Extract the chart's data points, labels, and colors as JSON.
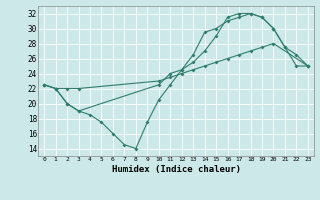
{
  "xlabel": "Humidex (Indice chaleur)",
  "background_color": "#cce8e8",
  "line_color": "#2e7d6e",
  "ylim": [
    13,
    33
  ],
  "xlim": [
    -0.5,
    23.5
  ],
  "yticks": [
    14,
    16,
    18,
    20,
    22,
    24,
    26,
    28,
    30,
    32
  ],
  "xticks": [
    0,
    1,
    2,
    3,
    4,
    5,
    6,
    7,
    8,
    9,
    10,
    11,
    12,
    13,
    14,
    15,
    16,
    17,
    18,
    19,
    20,
    21,
    22,
    23
  ],
  "line1_x": [
    0,
    1,
    2,
    3,
    4,
    5,
    6,
    7,
    8,
    9,
    10,
    11,
    12,
    13,
    14,
    15,
    16,
    17,
    18,
    19,
    20,
    21,
    22,
    23
  ],
  "line1_y": [
    22.5,
    22.0,
    20.0,
    19.0,
    18.5,
    17.5,
    16.0,
    14.5,
    14.0,
    17.5,
    20.5,
    22.5,
    24.5,
    26.5,
    29.5,
    30.0,
    31.0,
    31.5,
    32.0,
    31.5,
    30.0,
    27.5,
    25.0,
    25.0
  ],
  "line2_x": [
    0,
    1,
    2,
    3,
    10,
    11,
    12,
    13,
    14,
    15,
    16,
    17,
    18,
    19,
    20,
    21,
    22,
    23
  ],
  "line2_y": [
    22.5,
    22.0,
    20.0,
    19.0,
    22.5,
    24.0,
    24.5,
    25.5,
    27.0,
    29.0,
    31.5,
    32.0,
    32.0,
    31.5,
    30.0,
    27.5,
    26.5,
    25.0
  ],
  "line3_x": [
    0,
    1,
    2,
    3,
    10,
    11,
    12,
    13,
    14,
    15,
    16,
    17,
    18,
    19,
    20,
    23
  ],
  "line3_y": [
    22.5,
    22.0,
    22.0,
    22.0,
    23.0,
    23.5,
    24.0,
    24.5,
    25.0,
    25.5,
    26.0,
    26.5,
    27.0,
    27.5,
    28.0,
    25.0
  ]
}
